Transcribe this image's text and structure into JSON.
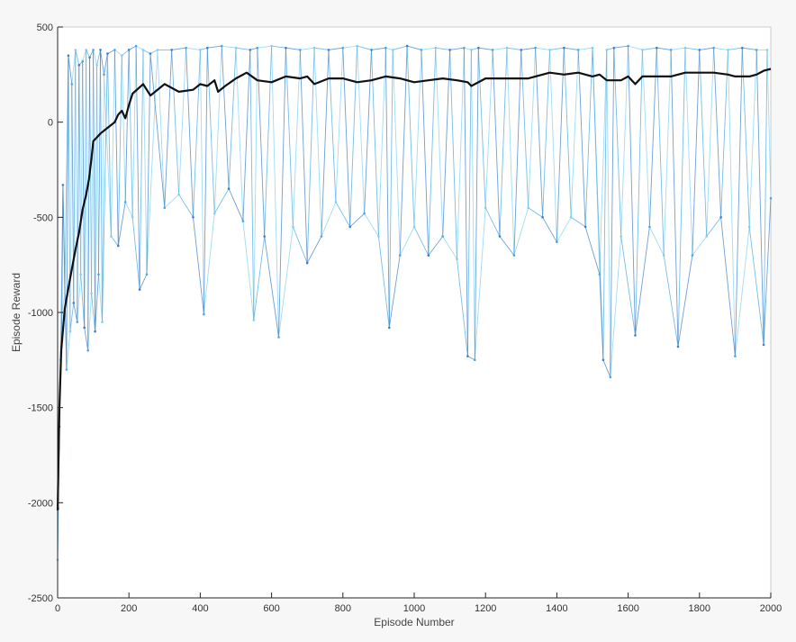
{
  "chart_data": {
    "type": "line",
    "title": "",
    "xlabel": "Episode Number",
    "ylabel": "Episode Reward",
    "xlim": [
      0,
      2000
    ],
    "ylim": [
      -2500,
      500
    ],
    "x_ticks": [
      0,
      200,
      400,
      600,
      800,
      1000,
      1200,
      1400,
      1600,
      1800,
      2000
    ],
    "y_ticks": [
      -2500,
      -2000,
      -1500,
      -1000,
      -500,
      0,
      500
    ],
    "grid": false,
    "legend": "none",
    "series": [
      {
        "role": "episode-reward",
        "style": "thin line with point markers, overlapping light-to-dark blue traces",
        "colors": [
          "#7fd0f0",
          "#4aa8e0",
          "#3f7fc8"
        ],
        "points_sampled": [
          [
            0,
            -2300
          ],
          [
            2,
            -2030
          ],
          [
            5,
            -1600
          ],
          [
            8,
            -1250
          ],
          [
            12,
            -1000
          ],
          [
            15,
            -330
          ],
          [
            20,
            -900
          ],
          [
            25,
            -1300
          ],
          [
            30,
            350
          ],
          [
            35,
            -1100
          ],
          [
            40,
            200
          ],
          [
            45,
            -950
          ],
          [
            50,
            380
          ],
          [
            55,
            -1050
          ],
          [
            60,
            300
          ],
          [
            65,
            -800
          ],
          [
            70,
            320
          ],
          [
            75,
            -1080
          ],
          [
            80,
            380
          ],
          [
            85,
            -1200
          ],
          [
            90,
            340
          ],
          [
            95,
            -900
          ],
          [
            100,
            380
          ],
          [
            105,
            -1100
          ],
          [
            110,
            300
          ],
          [
            115,
            -800
          ],
          [
            120,
            380
          ],
          [
            125,
            -1050
          ],
          [
            130,
            250
          ],
          [
            140,
            360
          ],
          [
            150,
            -600
          ],
          [
            160,
            380
          ],
          [
            170,
            -650
          ],
          [
            180,
            350
          ],
          [
            190,
            -420
          ],
          [
            200,
            380
          ],
          [
            210,
            -500
          ],
          [
            220,
            400
          ],
          [
            230,
            -880
          ],
          [
            240,
            380
          ],
          [
            250,
            -800
          ],
          [
            260,
            360
          ],
          [
            280,
            380
          ],
          [
            300,
            -450
          ],
          [
            320,
            380
          ],
          [
            340,
            -380
          ],
          [
            360,
            390
          ],
          [
            380,
            -500
          ],
          [
            400,
            380
          ],
          [
            410,
            -1010
          ],
          [
            420,
            390
          ],
          [
            440,
            -480
          ],
          [
            460,
            400
          ],
          [
            480,
            -350
          ],
          [
            500,
            390
          ],
          [
            520,
            -520
          ],
          [
            540,
            380
          ],
          [
            550,
            -1040
          ],
          [
            560,
            390
          ],
          [
            580,
            -600
          ],
          [
            600,
            400
          ],
          [
            620,
            -1130
          ],
          [
            640,
            390
          ],
          [
            660,
            -550
          ],
          [
            680,
            380
          ],
          [
            700,
            -740
          ],
          [
            720,
            390
          ],
          [
            740,
            -600
          ],
          [
            760,
            380
          ],
          [
            780,
            -420
          ],
          [
            800,
            390
          ],
          [
            820,
            -550
          ],
          [
            840,
            400
          ],
          [
            860,
            -480
          ],
          [
            880,
            380
          ],
          [
            900,
            -600
          ],
          [
            920,
            390
          ],
          [
            930,
            -1080
          ],
          [
            940,
            380
          ],
          [
            960,
            -700
          ],
          [
            980,
            400
          ],
          [
            1000,
            -550
          ],
          [
            1020,
            380
          ],
          [
            1040,
            -700
          ],
          [
            1060,
            390
          ],
          [
            1080,
            -600
          ],
          [
            1100,
            380
          ],
          [
            1120,
            -720
          ],
          [
            1140,
            390
          ],
          [
            1150,
            -1230
          ],
          [
            1160,
            380
          ],
          [
            1170,
            -1250
          ],
          [
            1180,
            390
          ],
          [
            1200,
            -450
          ],
          [
            1220,
            380
          ],
          [
            1240,
            -600
          ],
          [
            1260,
            390
          ],
          [
            1280,
            -700
          ],
          [
            1300,
            380
          ],
          [
            1320,
            -450
          ],
          [
            1340,
            390
          ],
          [
            1360,
            -500
          ],
          [
            1380,
            380
          ],
          [
            1400,
            -630
          ],
          [
            1420,
            390
          ],
          [
            1440,
            -500
          ],
          [
            1460,
            380
          ],
          [
            1480,
            -550
          ],
          [
            1500,
            390
          ],
          [
            1520,
            -800
          ],
          [
            1530,
            -1250
          ],
          [
            1540,
            380
          ],
          [
            1550,
            -1340
          ],
          [
            1560,
            390
          ],
          [
            1580,
            -600
          ],
          [
            1600,
            400
          ],
          [
            1620,
            -1120
          ],
          [
            1640,
            380
          ],
          [
            1660,
            -550
          ],
          [
            1680,
            390
          ],
          [
            1700,
            -700
          ],
          [
            1720,
            380
          ],
          [
            1740,
            -1180
          ],
          [
            1760,
            390
          ],
          [
            1780,
            -700
          ],
          [
            1800,
            380
          ],
          [
            1820,
            -600
          ],
          [
            1840,
            390
          ],
          [
            1860,
            -500
          ],
          [
            1880,
            380
          ],
          [
            1900,
            -1230
          ],
          [
            1920,
            390
          ],
          [
            1940,
            -550
          ],
          [
            1960,
            380
          ],
          [
            1980,
            -1170
          ],
          [
            1990,
            380
          ],
          [
            2000,
            -400
          ]
        ]
      },
      {
        "role": "average-reward",
        "style": "thick solid line",
        "color": "#111111",
        "points": [
          [
            0,
            -2040
          ],
          [
            5,
            -1500
          ],
          [
            10,
            -1200
          ],
          [
            20,
            -980
          ],
          [
            35,
            -820
          ],
          [
            50,
            -670
          ],
          [
            60,
            -580
          ],
          [
            70,
            -460
          ],
          [
            80,
            -380
          ],
          [
            88,
            -300
          ],
          [
            95,
            -190
          ],
          [
            100,
            -100
          ],
          [
            110,
            -80
          ],
          [
            120,
            -60
          ],
          [
            140,
            -30
          ],
          [
            160,
            0
          ],
          [
            170,
            40
          ],
          [
            180,
            60
          ],
          [
            190,
            20
          ],
          [
            200,
            90
          ],
          [
            210,
            150
          ],
          [
            240,
            200
          ],
          [
            260,
            140
          ],
          [
            300,
            200
          ],
          [
            340,
            160
          ],
          [
            380,
            170
          ],
          [
            400,
            200
          ],
          [
            420,
            190
          ],
          [
            440,
            220
          ],
          [
            450,
            160
          ],
          [
            470,
            190
          ],
          [
            500,
            230
          ],
          [
            530,
            260
          ],
          [
            560,
            220
          ],
          [
            600,
            210
          ],
          [
            640,
            240
          ],
          [
            680,
            230
          ],
          [
            700,
            240
          ],
          [
            720,
            200
          ],
          [
            760,
            230
          ],
          [
            800,
            230
          ],
          [
            840,
            210
          ],
          [
            880,
            220
          ],
          [
            920,
            240
          ],
          [
            960,
            230
          ],
          [
            1000,
            210
          ],
          [
            1040,
            220
          ],
          [
            1080,
            230
          ],
          [
            1120,
            220
          ],
          [
            1150,
            210
          ],
          [
            1160,
            190
          ],
          [
            1200,
            230
          ],
          [
            1240,
            230
          ],
          [
            1280,
            230
          ],
          [
            1320,
            230
          ],
          [
            1380,
            260
          ],
          [
            1420,
            250
          ],
          [
            1460,
            260
          ],
          [
            1500,
            240
          ],
          [
            1520,
            250
          ],
          [
            1540,
            220
          ],
          [
            1580,
            220
          ],
          [
            1600,
            240
          ],
          [
            1620,
            200
          ],
          [
            1640,
            240
          ],
          [
            1680,
            240
          ],
          [
            1720,
            240
          ],
          [
            1760,
            260
          ],
          [
            1800,
            260
          ],
          [
            1840,
            260
          ],
          [
            1880,
            250
          ],
          [
            1900,
            240
          ],
          [
            1940,
            240
          ],
          [
            1960,
            250
          ],
          [
            1980,
            270
          ],
          [
            2000,
            280
          ]
        ]
      }
    ]
  }
}
